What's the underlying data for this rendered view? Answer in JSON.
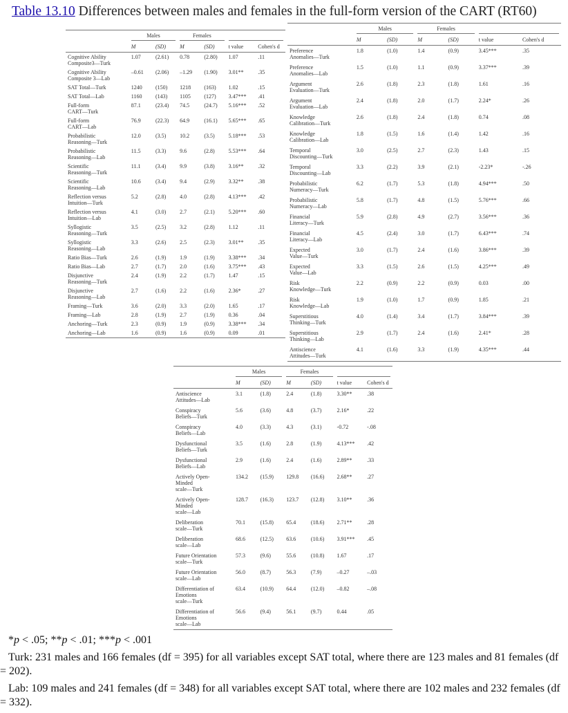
{
  "title": {
    "link": "Table 13.10",
    "text": " Differences between males and females in the full-form version of the CART (RT60)"
  },
  "headers": {
    "males": "Males",
    "females": "Females",
    "m": "M",
    "sd": "(SD)",
    "t": "t value",
    "d": "Cohen's d"
  },
  "tables": {
    "left": [
      [
        "Cognitive Ability\nComposite3—Turk",
        "1.07",
        "(2.61)",
        "0.78",
        "(2.80)",
        "1.07",
        ".11"
      ],
      [
        "Cognitive Ability\nComposite 3—Lab",
        "–0.61",
        "(2.06)",
        "–1.29",
        "(1.90)",
        "3.01**",
        ".35"
      ],
      [
        "SAT Total—Turk",
        "1240",
        "(150)",
        "1218",
        "(163)",
        "1.02",
        ".15"
      ],
      [
        "SAT Total—Lab",
        "1160",
        "(143)",
        "1105",
        "(127)",
        "3.47***",
        ".41"
      ],
      [
        "Full-form\nCART—Turk",
        "87.1",
        "(23.4)",
        "74.5",
        "(24.7)",
        "5.16***",
        ".52"
      ],
      [
        "Full-form\nCART—Lab",
        "76.9",
        "(22.3)",
        "64.9",
        "(16.1)",
        "5.65***",
        ".65"
      ],
      [
        "Probabilistic\nReasoning—Turk",
        "12.0",
        "(3.5)",
        "10.2",
        "(3.5)",
        "5.18***",
        ".53"
      ],
      [
        "Probabilistic\nReasoning—Lab",
        "11.5",
        "(3.3)",
        "9.6",
        "(2.8)",
        "5.53***",
        ".64"
      ],
      [
        "Scientific\nReasoning—Turk",
        "11.1",
        "(3.4)",
        "9.9",
        "(3.8)",
        "3.16**",
        ".32"
      ],
      [
        "Scientific\nReasoning—Lab",
        "10.6",
        "(3.4)",
        "9.4",
        "(2.9)",
        "3.32**",
        ".38"
      ],
      [
        "Reflection versus\nIntuition—Turk",
        "5.2",
        "(2.8)",
        "4.0",
        "(2.8)",
        "4.13***",
        ".42"
      ],
      [
        "Reflection versus\nIntuition—Lab",
        "4.1",
        "(3.0)",
        "2.7",
        "(2.1)",
        "5.20***",
        ".60"
      ],
      [
        "Syllogistic\nReasoning—Turk",
        "3.5",
        "(2.5)",
        "3.2",
        "(2.8)",
        "1.12",
        ".11"
      ],
      [
        "Syllogistic\nReasoning—Lab",
        "3.3",
        "(2.6)",
        "2.5",
        "(2.3)",
        "3.01**",
        ".35"
      ],
      [
        "Ratio Bias—Turk",
        "2.6",
        "(1.9)",
        "1.9",
        "(1.9)",
        "3.38***",
        ".34"
      ],
      [
        "Ratio Bias—Lab",
        "2.7",
        "(1.7)",
        "2.0",
        "(1.6)",
        "3.75***",
        ".43"
      ],
      [
        "Disjunctive\nReasoning—Turk",
        "2.4",
        "(1.9)",
        "2.2",
        "(1.7)",
        "1.47",
        ".15"
      ],
      [
        "Disjunctive\nReasoning—Lab",
        "2.7",
        "(1.6)",
        "2.2",
        "(1.6)",
        "2.36*",
        ".27"
      ],
      [
        "Framing—Turk",
        "3.6",
        "(2.0)",
        "3.3",
        "(2.0)",
        "1.65",
        ".17"
      ],
      [
        "Framing—Lab",
        "2.8",
        "(1.9)",
        "2.7",
        "(1.9)",
        "0.36",
        ".04"
      ],
      [
        "Anchoring—Turk",
        "2.3",
        "(0.9)",
        "1.9",
        "(0.9)",
        "3.38***",
        ".34"
      ],
      [
        "Anchoring—Lab",
        "1.6",
        "(0.9)",
        "1.6",
        "(0.9)",
        "0.09",
        ".01"
      ]
    ],
    "right": [
      [
        "Preference\nAnomalies—Turk",
        "1.8",
        "(1.0)",
        "1.4",
        "(0.9)",
        "3.45***",
        ".35"
      ],
      [
        "Preference\nAnomalies—Lab",
        "1.5",
        "(1.0)",
        "1.1",
        "(0.9)",
        "3.37***",
        ".39"
      ],
      [
        "Argument\nEvaluation—Turk",
        "2.6",
        "(1.8)",
        "2.3",
        "(1.8)",
        "1.61",
        ".16"
      ],
      [
        "Argument\nEvaluation—Lab",
        "2.4",
        "(1.8)",
        "2.0",
        "(1.7)",
        "2.24*",
        ".26"
      ],
      [
        "Knowledge\nCalibration—Turk",
        "2.6",
        "(1.8)",
        "2.4",
        "(1.8)",
        "0.74",
        ".08"
      ],
      [
        "Knowledge\nCalibration—Lab",
        "1.8",
        "(1.5)",
        "1.6",
        "(1.4)",
        "1.42",
        ".16"
      ],
      [
        "Temporal\nDiscounting—Turk",
        "3.0",
        "(2.5)",
        "2.7",
        "(2.3)",
        "1.43",
        ".15"
      ],
      [
        "Temporal\nDiscounting—Lab",
        "3.3",
        "(2.2)",
        "3.9",
        "(2.1)",
        "-2.23*",
        "-.26"
      ],
      [
        "Probabilistic\nNumeracy—Turk",
        "6.2",
        "(1.7)",
        "5.3",
        "(1.8)",
        "4.94***",
        ".50"
      ],
      [
        "Probabilistic\nNumeracy—Lab",
        "5.8",
        "(1.7)",
        "4.8",
        "(1.5)",
        "5.76***",
        ".66"
      ],
      [
        "Financial\nLiteracy—Turk",
        "5.9",
        "(2.8)",
        "4.9",
        "(2.7)",
        "3.56***",
        ".36"
      ],
      [
        "Financial\nLiteracy—Lab",
        "4.5",
        "(2.4)",
        "3.0",
        "(1.7)",
        "6.43***",
        ".74"
      ],
      [
        "Expected\nValue—Turk",
        "3.0",
        "(1.7)",
        "2.4",
        "(1.6)",
        "3.86***",
        ".39"
      ],
      [
        "Expected\nValue—Lab",
        "3.3",
        "(1.5)",
        "2.6",
        "(1.5)",
        "4.25***",
        ".49"
      ],
      [
        "Risk\nKnowledge—Turk",
        "2.2",
        "(0.9)",
        "2.2",
        "(0.9)",
        "0.03",
        ".00"
      ],
      [
        "Risk\nKnowledge—Lab",
        "1.9",
        "(1.0)",
        "1.7",
        "(0.9)",
        "1.85",
        ".21"
      ],
      [
        "Superstitious\nThinking—Turk",
        "4.0",
        "(1.4)",
        "3.4",
        "(1.7)",
        "3.84***",
        ".39"
      ],
      [
        "Superstitious\nThinking—Lab",
        "2.9",
        "(1.7)",
        "2.4",
        "(1.6)",
        "2.41*",
        ".28"
      ],
      [
        "Antiscience\nAttitudes—Turk",
        "4.1",
        "(1.6)",
        "3.3",
        "(1.9)",
        "4.35***",
        ".44"
      ]
    ],
    "bottom": [
      [
        "Antiscience\nAttitudes—Lab",
        "3.1",
        "(1.8)",
        "2.4",
        "(1.8)",
        "3.30**",
        ".38"
      ],
      [
        "Conspiracy\nBeliefs—Turk",
        "5.6",
        "(3.6)",
        "4.8",
        "(3.7)",
        "2.16*",
        ".22"
      ],
      [
        "Conspiracy\nBeliefs—Lab",
        "4.0",
        "(3.3)",
        "4.3",
        "(3.1)",
        "-0.72",
        "-.08"
      ],
      [
        "Dysfunctional\nBeliefs—Turk",
        "3.5",
        "(1.6)",
        "2.8",
        "(1.9)",
        "4.13***",
        ".42"
      ],
      [
        "Dysfunctional\nBeliefs—Lab",
        "2.9",
        "(1.6)",
        "2.4",
        "(1.6)",
        "2.89**",
        ".33"
      ],
      [
        "Actively Open-\nMinded\nscale—Turk",
        "134.2",
        "(15.9)",
        "129.8",
        "(16.6)",
        "2.68**",
        ".27"
      ],
      [
        "Actively Open-\nMinded\nscale—Lab",
        "128.7",
        "(16.3)",
        "123.7",
        "(12.8)",
        "3.10**",
        ".36"
      ],
      [
        "Deliberation\nscale—Turk",
        "70.1",
        "(15.8)",
        "65.4",
        "(18.6)",
        "2.71**",
        ".28"
      ],
      [
        "Deliberation\nscale—Lab",
        "68.6",
        "(12.5)",
        "63.6",
        "(10.6)",
        "3.91***",
        ".45"
      ],
      [
        "Future Orientation\nscale—Turk",
        "57.3",
        "(9.6)",
        "55.6",
        "(10.8)",
        "1.67",
        ".17"
      ],
      [
        "Future Orientation\nscale—Lab",
        "56.0",
        "(8.7)",
        "56.3",
        "(7.9)",
        "–0.27",
        "–.03"
      ],
      [
        "Differentiation of\nEmotions\nscale—Turk",
        "63.4",
        "(10.9)",
        "64.4",
        "(12.0)",
        "–0.82",
        "–.08"
      ],
      [
        "Differentiation of\nEmotions\nscale—Lab",
        "56.6",
        "(9.4)",
        "56.1",
        "(9.7)",
        "0.44",
        ".05"
      ]
    ]
  },
  "notes": {
    "significance": [
      "*",
      "p",
      " < .05; **",
      "p",
      " < .01; ***",
      "p",
      " < .001"
    ],
    "turk": "Turk: 231 males and 166 females (df = 395) for all variables except SAT total, where there are 123 males and 81 females (df = 202).",
    "lab": "Lab: 109 males and 241 females (df = 348) for all variables except SAT total, where there are 102 males and 232 females (df = 332)."
  }
}
